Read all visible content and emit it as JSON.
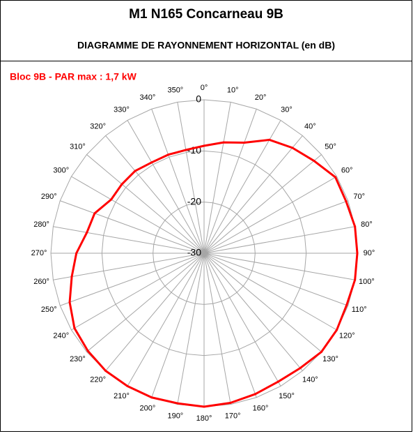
{
  "chart_data": {
    "type": "radar",
    "title": "M1 N165 Concarneau 9B",
    "subtitle": "DIAGRAMME DE RAYONNEMENT HORIZONTAL  (en dB)",
    "categories": [
      "0°",
      "10°",
      "20°",
      "30°",
      "40°",
      "50°",
      "60°",
      "70°",
      "80°",
      "90°",
      "100°",
      "110°",
      "120°",
      "130°",
      "140°",
      "150°",
      "160°",
      "170°",
      "180°",
      "190°",
      "200°",
      "210°",
      "220°",
      "230°",
      "240°",
      "250°",
      "260°",
      "270°",
      "280°",
      "290°",
      "300°",
      "310°",
      "320°",
      "330°",
      "340°",
      "350°"
    ],
    "series": [
      {
        "name": "Bloc 9B - PAR max : 1,7 kW",
        "color": "#ff0000",
        "values": [
          -9,
          -8,
          -7,
          -4.4,
          -3.1,
          -1.9,
          -0.3,
          -0.4,
          0,
          0,
          0,
          -0.3,
          0,
          0,
          -0.7,
          -1,
          -0.7,
          -0.3,
          0,
          -0.2,
          0,
          0,
          0,
          -0.3,
          -0.7,
          -2,
          -3.7,
          -5,
          -6.7,
          -7.2,
          -9,
          -9,
          -9,
          -9.5,
          -9.5,
          -9.5
        ]
      }
    ],
    "rlim": [
      -30,
      0
    ],
    "rticks": [
      -30,
      -20,
      -10,
      0
    ],
    "grid": true
  }
}
